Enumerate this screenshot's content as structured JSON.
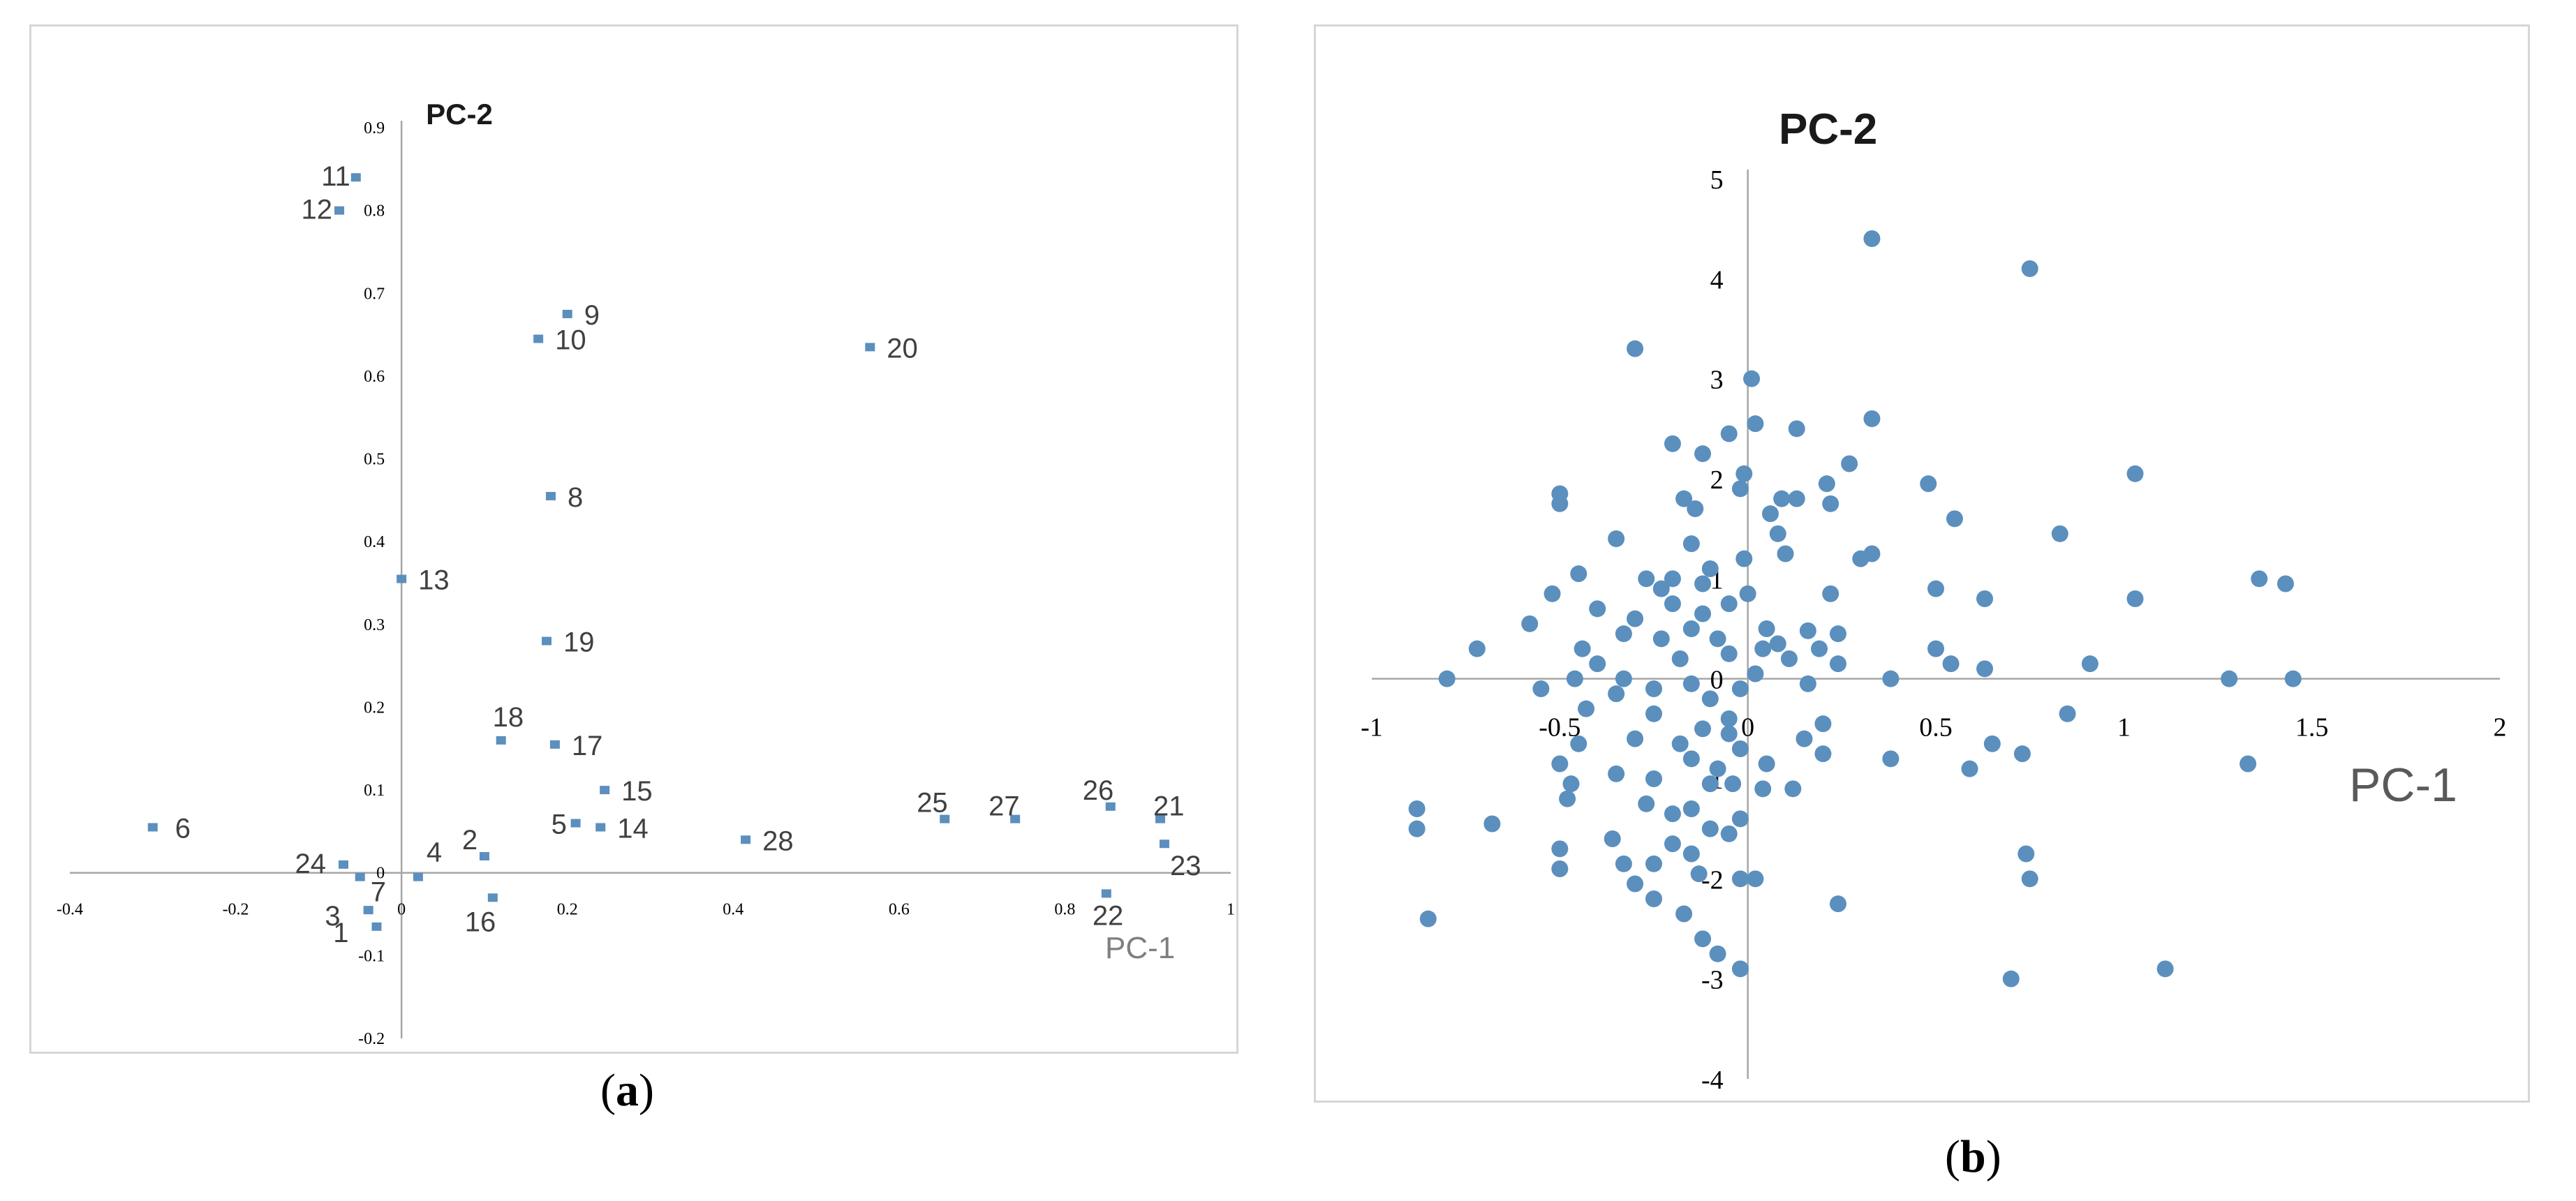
{
  "captions": {
    "a": "a",
    "b": "b"
  },
  "colors": {
    "point": "#5b8fbe",
    "axis": "#a6a6a6",
    "text": "#404040"
  },
  "chart_data": [
    {
      "type": "scatter",
      "panel": "a",
      "xlabel": "PC-1",
      "ylabel": "PC-2",
      "xlim": [
        -0.4,
        1
      ],
      "ylim": [
        -0.2,
        0.9
      ],
      "x_ticks": [
        "-0.4",
        "-0.2",
        "0",
        "0.2",
        "0.4",
        "0.6",
        "0.8",
        "1"
      ],
      "y_ticks": [
        "-0.2",
        "-0.1",
        "0",
        "0.1",
        "0.2",
        "0.3",
        "0.4",
        "0.5",
        "0.6",
        "0.7",
        "0.8",
        "0.9"
      ],
      "grid": false,
      "points": [
        {
          "label": "1",
          "x": -0.03,
          "y": -0.065
        },
        {
          "label": "2",
          "x": 0.1,
          "y": 0.02
        },
        {
          "label": "3",
          "x": -0.04,
          "y": -0.045
        },
        {
          "label": "4",
          "x": 0.02,
          "y": -0.005
        },
        {
          "label": "5",
          "x": 0.21,
          "y": 0.06
        },
        {
          "label": "6",
          "x": -0.3,
          "y": 0.055
        },
        {
          "label": "7",
          "x": -0.05,
          "y": -0.005
        },
        {
          "label": "8",
          "x": 0.18,
          "y": 0.455
        },
        {
          "label": "9",
          "x": 0.2,
          "y": 0.675
        },
        {
          "label": "10",
          "x": 0.165,
          "y": 0.645
        },
        {
          "label": "11",
          "x": -0.055,
          "y": 0.84
        },
        {
          "label": "12",
          "x": -0.075,
          "y": 0.8
        },
        {
          "label": "13",
          "x": 0.0,
          "y": 0.355
        },
        {
          "label": "14",
          "x": 0.24,
          "y": 0.055
        },
        {
          "label": "15",
          "x": 0.245,
          "y": 0.1
        },
        {
          "label": "16",
          "x": 0.11,
          "y": -0.03
        },
        {
          "label": "17",
          "x": 0.185,
          "y": 0.155
        },
        {
          "label": "18",
          "x": 0.12,
          "y": 0.16
        },
        {
          "label": "19",
          "x": 0.175,
          "y": 0.28
        },
        {
          "label": "20",
          "x": 0.565,
          "y": 0.635
        },
        {
          "label": "21",
          "x": 0.915,
          "y": 0.065
        },
        {
          "label": "22",
          "x": 0.85,
          "y": -0.025
        },
        {
          "label": "23",
          "x": 0.92,
          "y": 0.035
        },
        {
          "label": "24",
          "x": -0.07,
          "y": 0.01
        },
        {
          "label": "25",
          "x": 0.655,
          "y": 0.065
        },
        {
          "label": "26",
          "x": 0.855,
          "y": 0.08
        },
        {
          "label": "27",
          "x": 0.74,
          "y": 0.065
        },
        {
          "label": "28",
          "x": 0.415,
          "y": 0.04
        }
      ]
    },
    {
      "type": "scatter",
      "panel": "b",
      "xlabel": "PC-1",
      "ylabel": "PC-2",
      "xlim": [
        -1,
        2
      ],
      "ylim": [
        -4,
        5
      ],
      "x_ticks": [
        "-1",
        "-0.5",
        "0",
        "0.5",
        "1",
        "1.5",
        "2"
      ],
      "y_ticks": [
        "-4",
        "-3",
        "-2",
        "-1",
        "0",
        "1",
        "2",
        "3",
        "4",
        "5"
      ],
      "grid": false,
      "points": [
        {
          "x": 0.33,
          "y": 4.4
        },
        {
          "x": 0.75,
          "y": 4.1
        },
        {
          "x": -0.3,
          "y": 3.3
        },
        {
          "x": 0.01,
          "y": 3.0
        },
        {
          "x": 0.33,
          "y": 2.6
        },
        {
          "x": 0.02,
          "y": 2.55
        },
        {
          "x": 0.13,
          "y": 2.5
        },
        {
          "x": -0.05,
          "y": 2.45
        },
        {
          "x": -0.2,
          "y": 2.35
        },
        {
          "x": -0.12,
          "y": 2.25
        },
        {
          "x": 0.27,
          "y": 2.15
        },
        {
          "x": -0.01,
          "y": 2.05
        },
        {
          "x": 1.03,
          "y": 2.05
        },
        {
          "x": 0.48,
          "y": 1.95
        },
        {
          "x": 0.21,
          "y": 1.95
        },
        {
          "x": -0.02,
          "y": 1.9
        },
        {
          "x": 0.09,
          "y": 1.8
        },
        {
          "x": 0.13,
          "y": 1.8
        },
        {
          "x": -0.5,
          "y": 1.85
        },
        {
          "x": -0.5,
          "y": 1.75
        },
        {
          "x": -0.17,
          "y": 1.8
        },
        {
          "x": 0.22,
          "y": 1.75
        },
        {
          "x": -0.14,
          "y": 1.7
        },
        {
          "x": 0.06,
          "y": 1.65
        },
        {
          "x": 0.55,
          "y": 1.6
        },
        {
          "x": 0.08,
          "y": 1.45
        },
        {
          "x": 0.83,
          "y": 1.45
        },
        {
          "x": -0.35,
          "y": 1.4
        },
        {
          "x": -0.15,
          "y": 1.35
        },
        {
          "x": 0.1,
          "y": 1.25
        },
        {
          "x": 0.33,
          "y": 1.25
        },
        {
          "x": -0.01,
          "y": 1.2
        },
        {
          "x": 0.3,
          "y": 1.2
        },
        {
          "x": -0.1,
          "y": 1.1
        },
        {
          "x": -0.45,
          "y": 1.05
        },
        {
          "x": -0.27,
          "y": 1.0
        },
        {
          "x": -0.2,
          "y": 1.0
        },
        {
          "x": 1.36,
          "y": 1.0
        },
        {
          "x": 1.43,
          "y": 0.95
        },
        {
          "x": -0.12,
          "y": 0.95
        },
        {
          "x": -0.23,
          "y": 0.9
        },
        {
          "x": 0.5,
          "y": 0.9
        },
        {
          "x": 0.22,
          "y": 0.85
        },
        {
          "x": 0.0,
          "y": 0.85
        },
        {
          "x": -0.52,
          "y": 0.85
        },
        {
          "x": 1.03,
          "y": 0.8
        },
        {
          "x": 0.63,
          "y": 0.8
        },
        {
          "x": -0.2,
          "y": 0.75
        },
        {
          "x": -0.05,
          "y": 0.75
        },
        {
          "x": -0.4,
          "y": 0.7
        },
        {
          "x": -0.12,
          "y": 0.65
        },
        {
          "x": -0.3,
          "y": 0.6
        },
        {
          "x": -0.58,
          "y": 0.55
        },
        {
          "x": 0.05,
          "y": 0.5
        },
        {
          "x": -0.15,
          "y": 0.5
        },
        {
          "x": 0.16,
          "y": 0.48
        },
        {
          "x": 0.24,
          "y": 0.45
        },
        {
          "x": -0.33,
          "y": 0.45
        },
        {
          "x": -0.23,
          "y": 0.4
        },
        {
          "x": -0.08,
          "y": 0.4
        },
        {
          "x": 0.08,
          "y": 0.35
        },
        {
          "x": 0.19,
          "y": 0.3
        },
        {
          "x": 0.04,
          "y": 0.3
        },
        {
          "x": -0.72,
          "y": 0.3
        },
        {
          "x": -0.44,
          "y": 0.3
        },
        {
          "x": 0.5,
          "y": 0.3
        },
        {
          "x": -0.05,
          "y": 0.25
        },
        {
          "x": 0.11,
          "y": 0.2
        },
        {
          "x": -0.18,
          "y": 0.2
        },
        {
          "x": 0.91,
          "y": 0.15
        },
        {
          "x": 0.54,
          "y": 0.15
        },
        {
          "x": 0.24,
          "y": 0.15
        },
        {
          "x": -0.4,
          "y": 0.15
        },
        {
          "x": 0.63,
          "y": 0.1
        },
        {
          "x": 0.02,
          "y": 0.05
        },
        {
          "x": -0.46,
          "y": 0.0
        },
        {
          "x": -0.33,
          "y": 0.0
        },
        {
          "x": -0.8,
          "y": 0.0
        },
        {
          "x": 0.38,
          "y": 0.0
        },
        {
          "x": 1.28,
          "y": 0.0
        },
        {
          "x": 1.45,
          "y": 0.0
        },
        {
          "x": -0.15,
          "y": -0.05
        },
        {
          "x": -0.25,
          "y": -0.1
        },
        {
          "x": 0.16,
          "y": -0.05
        },
        {
          "x": -0.55,
          "y": -0.1
        },
        {
          "x": -0.02,
          "y": -0.1
        },
        {
          "x": -0.35,
          "y": -0.15
        },
        {
          "x": 0.85,
          "y": -0.35
        },
        {
          "x": -0.1,
          "y": -0.2
        },
        {
          "x": -0.43,
          "y": -0.3
        },
        {
          "x": -0.25,
          "y": -0.35
        },
        {
          "x": -0.05,
          "y": -0.4
        },
        {
          "x": 0.2,
          "y": -0.45
        },
        {
          "x": -0.12,
          "y": -0.5
        },
        {
          "x": -0.05,
          "y": -0.55
        },
        {
          "x": -0.3,
          "y": -0.6
        },
        {
          "x": 0.15,
          "y": -0.6
        },
        {
          "x": -0.45,
          "y": -0.65
        },
        {
          "x": -0.18,
          "y": -0.65
        },
        {
          "x": -0.02,
          "y": -0.7
        },
        {
          "x": 0.65,
          "y": -0.65
        },
        {
          "x": 0.2,
          "y": -0.75
        },
        {
          "x": -0.15,
          "y": -0.8
        },
        {
          "x": 0.38,
          "y": -0.8
        },
        {
          "x": 0.73,
          "y": -0.75
        },
        {
          "x": -0.5,
          "y": -0.85
        },
        {
          "x": 0.05,
          "y": -0.85
        },
        {
          "x": -0.08,
          "y": -0.9
        },
        {
          "x": 0.59,
          "y": -0.9
        },
        {
          "x": -0.35,
          "y": -0.95
        },
        {
          "x": -0.25,
          "y": -1.0
        },
        {
          "x": -0.47,
          "y": -1.05
        },
        {
          "x": 0.12,
          "y": -1.1
        },
        {
          "x": 1.33,
          "y": -0.85
        },
        {
          "x": -0.04,
          "y": -1.05
        },
        {
          "x": -0.1,
          "y": -1.05
        },
        {
          "x": -0.48,
          "y": -1.2
        },
        {
          "x": -0.27,
          "y": -1.25
        },
        {
          "x": 0.04,
          "y": -1.1
        },
        {
          "x": -0.15,
          "y": -1.3
        },
        {
          "x": -0.88,
          "y": -1.3
        },
        {
          "x": -0.2,
          "y": -1.35
        },
        {
          "x": -0.02,
          "y": -1.4
        },
        {
          "x": -0.68,
          "y": -1.45
        },
        {
          "x": -0.1,
          "y": -1.5
        },
        {
          "x": -0.88,
          "y": -1.5
        },
        {
          "x": -0.05,
          "y": -1.55
        },
        {
          "x": -0.36,
          "y": -1.6
        },
        {
          "x": -0.2,
          "y": -1.65
        },
        {
          "x": -0.5,
          "y": -1.7
        },
        {
          "x": -0.15,
          "y": -1.75
        },
        {
          "x": 0.74,
          "y": -1.75
        },
        {
          "x": -0.33,
          "y": -1.85
        },
        {
          "x": -0.25,
          "y": -1.85
        },
        {
          "x": -0.5,
          "y": -1.9
        },
        {
          "x": -0.13,
          "y": -1.95
        },
        {
          "x": -0.02,
          "y": -2.0
        },
        {
          "x": 0.75,
          "y": -2.0
        },
        {
          "x": -0.3,
          "y": -2.05
        },
        {
          "x": 0.02,
          "y": -2.0
        },
        {
          "x": -0.25,
          "y": -2.2
        },
        {
          "x": 0.24,
          "y": -2.25
        },
        {
          "x": -0.17,
          "y": -2.35
        },
        {
          "x": -0.85,
          "y": -2.4
        },
        {
          "x": -0.12,
          "y": -2.6
        },
        {
          "x": -0.08,
          "y": -2.75
        },
        {
          "x": -0.02,
          "y": -2.9
        },
        {
          "x": 1.11,
          "y": -2.9
        },
        {
          "x": 0.7,
          "y": -3.0
        }
      ]
    }
  ]
}
